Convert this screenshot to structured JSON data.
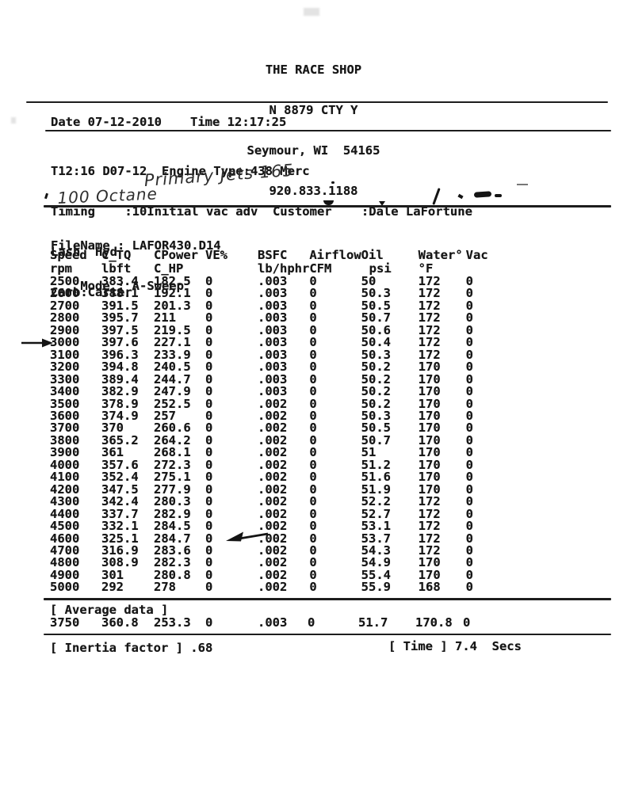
{
  "shop": {
    "name": "THE RACE SHOP",
    "address1": "N 8879 CTY Y",
    "address2": "Seymour, WI  54165",
    "phone": "920.833.1188"
  },
  "datetime": {
    "date_text": "Date 07-12-2010",
    "time_text": "Time 12:17:25"
  },
  "engine_info": {
    "line1": "T12:16 D07-12  Engine Type:438 Merc",
    "line2": "Timing    :10Initial vac adv  Customer    :Dale LaFortune",
    "line3": "Lash  Hyd",
    "line4": "Carb:Carter"
  },
  "handwriting": {
    "carb_note": "Primary Jets 165",
    "fuel_note": "100 Octane"
  },
  "file_info": {
    "filename_line": "FileName : LAFOR430.D14",
    "mode_line": "    Mode : A-Sweep"
  },
  "table": {
    "columns": [
      {
        "l1": "Speed",
        "l2": "rpm"
      },
      {
        "l1": "C_TQ",
        "l2": "lbft"
      },
      {
        "l1": "CPower",
        "l2": "C_HP"
      },
      {
        "l1": "VE%",
        "l2": ""
      },
      {
        "l1": "BSFC",
        "l2": "lb/hphr"
      },
      {
        "l1": "Airflow",
        "l2": "CFM"
      },
      {
        "l1": "Oil",
        "l2": "psi"
      },
      {
        "l1": "Water°",
        "l2": "°F"
      },
      {
        "l1": "Vac",
        "l2": ""
      }
    ],
    "rows": [
      [
        "2500",
        "383.4",
        "182.5",
        "0",
        ".003",
        "0",
        "50",
        "172",
        "0"
      ],
      [
        "2600",
        "388.1",
        "192.1",
        "0",
        ".003",
        "0",
        "50.3",
        "172",
        "0"
      ],
      [
        "2700",
        "391.5",
        "201.3",
        "0",
        ".003",
        "0",
        "50.5",
        "172",
        "0"
      ],
      [
        "2800",
        "395.7",
        "211",
        "0",
        ".003",
        "0",
        "50.7",
        "172",
        "0"
      ],
      [
        "2900",
        "397.5",
        "219.5",
        "0",
        ".003",
        "0",
        "50.6",
        "172",
        "0"
      ],
      [
        "3000",
        "397.6",
        "227.1",
        "0",
        ".003",
        "0",
        "50.4",
        "172",
        "0"
      ],
      [
        "3100",
        "396.3",
        "233.9",
        "0",
        ".003",
        "0",
        "50.3",
        "172",
        "0"
      ],
      [
        "3200",
        "394.8",
        "240.5",
        "0",
        ".003",
        "0",
        "50.2",
        "170",
        "0"
      ],
      [
        "3300",
        "389.4",
        "244.7",
        "0",
        ".003",
        "0",
        "50.2",
        "170",
        "0"
      ],
      [
        "3400",
        "382.9",
        "247.9",
        "0",
        ".003",
        "0",
        "50.2",
        "170",
        "0"
      ],
      [
        "3500",
        "378.9",
        "252.5",
        "0",
        ".002",
        "0",
        "50.2",
        "170",
        "0"
      ],
      [
        "3600",
        "374.9",
        "257",
        "0",
        ".002",
        "0",
        "50.3",
        "170",
        "0"
      ],
      [
        "3700",
        "370",
        "260.6",
        "0",
        ".002",
        "0",
        "50.5",
        "170",
        "0"
      ],
      [
        "3800",
        "365.2",
        "264.2",
        "0",
        ".002",
        "0",
        "50.7",
        "170",
        "0"
      ],
      [
        "3900",
        "361",
        "268.1",
        "0",
        ".002",
        "0",
        "51",
        "170",
        "0"
      ],
      [
        "4000",
        "357.6",
        "272.3",
        "0",
        ".002",
        "0",
        "51.2",
        "170",
        "0"
      ],
      [
        "4100",
        "352.4",
        "275.1",
        "0",
        ".002",
        "0",
        "51.6",
        "170",
        "0"
      ],
      [
        "4200",
        "347.5",
        "277.9",
        "0",
        ".002",
        "0",
        "51.9",
        "170",
        "0"
      ],
      [
        "4300",
        "342.4",
        "280.3",
        "0",
        ".002",
        "0",
        "52.2",
        "172",
        "0"
      ],
      [
        "4400",
        "337.7",
        "282.9",
        "0",
        ".002",
        "0",
        "52.7",
        "172",
        "0"
      ],
      [
        "4500",
        "332.1",
        "284.5",
        "0",
        ".002",
        "0",
        "53.1",
        "172",
        "0"
      ],
      [
        "4600",
        "325.1",
        "284.7",
        "0",
        ".002",
        "0",
        "53.7",
        "172",
        "0"
      ],
      [
        "4700",
        "316.9",
        "283.6",
        "0",
        ".002",
        "0",
        "54.3",
        "172",
        "0"
      ],
      [
        "4800",
        "308.9",
        "282.3",
        "0",
        ".002",
        "0",
        "54.9",
        "170",
        "0"
      ],
      [
        "4900",
        "301",
        "280.8",
        "0",
        ".002",
        "0",
        "55.4",
        "170",
        "0"
      ],
      [
        "5000",
        "292",
        "278",
        "0",
        ".002",
        "0",
        "55.9",
        "168",
        "0"
      ]
    ]
  },
  "average": {
    "label": "[ Average data ]",
    "row": [
      "3750",
      "360.8",
      "253.3",
      "0",
      ".003",
      "0",
      "51.7",
      "170.8",
      "0"
    ]
  },
  "footer": {
    "inertia_text": "[ Inertia factor ] .68",
    "time_text": "[ Time ] 7.4  Secs"
  }
}
